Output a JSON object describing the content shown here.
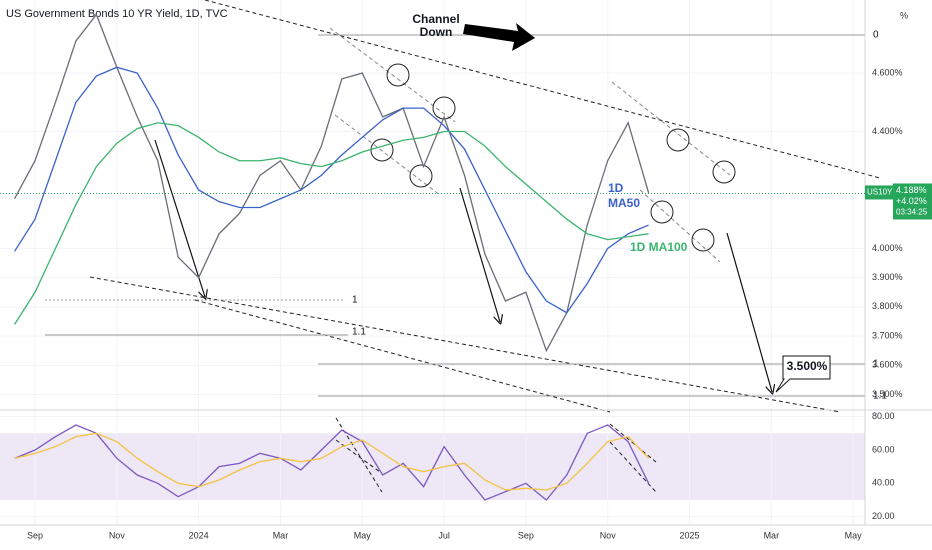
{
  "header": {
    "title": "US Government Bonds 10 YR Yield, 1D, TVC",
    "axis_unit": "%"
  },
  "annotations": {
    "channel": [
      "Channel",
      "Down"
    ],
    "ma50": [
      "1D",
      "MA50"
    ],
    "ma100": "1D MA100",
    "target": "3.500%",
    "levels": [
      "0",
      "1",
      "1.1",
      "1",
      "1.1"
    ]
  },
  "last": {
    "symbol": "US10Y",
    "value": 4.188,
    "value_label": "4.188%",
    "change": "+4.02%",
    "countdown": "03:34:25"
  },
  "chart_data": [
    {
      "type": "line",
      "x": [
        -0.5,
        0,
        0.5,
        1,
        1.5,
        2,
        2.5,
        3,
        3.5,
        4,
        4.5,
        5,
        5.5,
        6,
        6.5,
        7,
        7.5,
        8,
        8.5,
        9,
        9.5,
        10,
        10.5,
        11,
        11.5,
        12,
        12.5,
        13,
        13.5,
        14,
        14.5,
        15
      ],
      "series": [
        {
          "color": "#6a6d78",
          "values": [
            4.17,
            4.3,
            4.5,
            4.71,
            4.8,
            4.62,
            4.45,
            4.3,
            3.97,
            3.9,
            4.05,
            4.12,
            4.25,
            4.3,
            4.2,
            4.35,
            4.58,
            4.6,
            4.45,
            4.48,
            4.28,
            4.45,
            4.25,
            3.98,
            3.82,
            3.85,
            3.65,
            3.78,
            4.08,
            4.3,
            4.43,
            4.19
          ]
        },
        {
          "color": "#3a62c9",
          "values": [
            3.99,
            4.1,
            4.3,
            4.5,
            4.59,
            4.62,
            4.6,
            4.48,
            4.32,
            4.2,
            4.16,
            4.14,
            4.14,
            4.17,
            4.2,
            4.25,
            4.32,
            4.38,
            4.44,
            4.48,
            4.48,
            4.42,
            4.34,
            4.2,
            4.06,
            3.92,
            3.82,
            3.78,
            3.88,
            4.0,
            4.05,
            4.08
          ]
        },
        {
          "color": "#3cb46e",
          "values": [
            3.74,
            3.85,
            4.0,
            4.15,
            4.28,
            4.36,
            4.41,
            4.43,
            4.42,
            4.38,
            4.33,
            4.3,
            4.3,
            4.31,
            4.29,
            4.28,
            4.3,
            4.33,
            4.35,
            4.37,
            4.38,
            4.4,
            4.4,
            4.35,
            4.28,
            4.22,
            4.16,
            4.1,
            4.05,
            4.03,
            4.04,
            4.05
          ]
        }
      ],
      "xlim": [
        -0.856,
        20.29
      ],
      "xticks": [
        {
          "value": 0,
          "label": "Sep"
        },
        {
          "value": 2,
          "label": "Nov"
        },
        {
          "value": 4,
          "label": "2024"
        },
        {
          "value": 6,
          "label": "Mar"
        },
        {
          "value": 8,
          "label": "May"
        },
        {
          "value": 10,
          "label": "Jul"
        },
        {
          "value": 12,
          "label": "Sep"
        },
        {
          "value": 14,
          "label": "Nov"
        },
        {
          "value": 16,
          "label": "2025"
        },
        {
          "value": 18,
          "label": "Mar"
        },
        {
          "value": 20,
          "label": "May"
        }
      ],
      "ylim": [
        3.43,
        4.85
      ],
      "yticks": [
        {
          "value": 4.6,
          "label": "4.600%"
        },
        {
          "value": 4.4,
          "label": "4.400%"
        },
        {
          "value": 4.0,
          "label": "4.000%"
        },
        {
          "value": 3.9,
          "label": "3.900%"
        },
        {
          "value": 3.8,
          "label": "3.800%"
        },
        {
          "value": 3.7,
          "label": "3.700%"
        },
        {
          "value": 3.6,
          "label": "3.600%"
        },
        {
          "value": 3.5,
          "label": "3.500%"
        }
      ],
      "grid": true
    },
    {
      "type": "line",
      "x": [
        -0.5,
        0,
        0.5,
        1,
        1.5,
        2,
        2.5,
        3,
        3.5,
        4,
        4.5,
        5,
        5.5,
        6,
        6.5,
        7,
        7.5,
        8,
        8.5,
        9,
        9.5,
        10,
        10.5,
        11,
        11.5,
        12,
        12.5,
        13,
        13.5,
        14,
        14.5,
        15
      ],
      "series": [
        {
          "color": "#7e57c2",
          "values": [
            55,
            60,
            68,
            75,
            70,
            55,
            45,
            40,
            32,
            38,
            50,
            52,
            58,
            55,
            48,
            60,
            72,
            65,
            45,
            52,
            38,
            62,
            45,
            30,
            35,
            40,
            30,
            45,
            70,
            75,
            65,
            40
          ]
        },
        {
          "color": "#f5c242",
          "values": [
            55,
            58,
            62,
            68,
            70,
            65,
            55,
            47,
            40,
            38,
            42,
            48,
            53,
            55,
            53,
            55,
            62,
            66,
            58,
            50,
            47,
            50,
            52,
            42,
            36,
            37,
            36,
            40,
            52,
            65,
            68,
            55
          ]
        }
      ],
      "band": [
        30,
        70
      ],
      "band_color": "#ede7f6",
      "xlim": [
        -0.856,
        20.29
      ],
      "ylim": [
        15,
        84
      ],
      "yticks": [
        {
          "value": 80,
          "label": "80.00"
        },
        {
          "value": 60,
          "label": "60.00"
        },
        {
          "value": 40,
          "label": "40.00"
        },
        {
          "value": 20,
          "label": "20.00"
        }
      ],
      "grid": true
    }
  ]
}
